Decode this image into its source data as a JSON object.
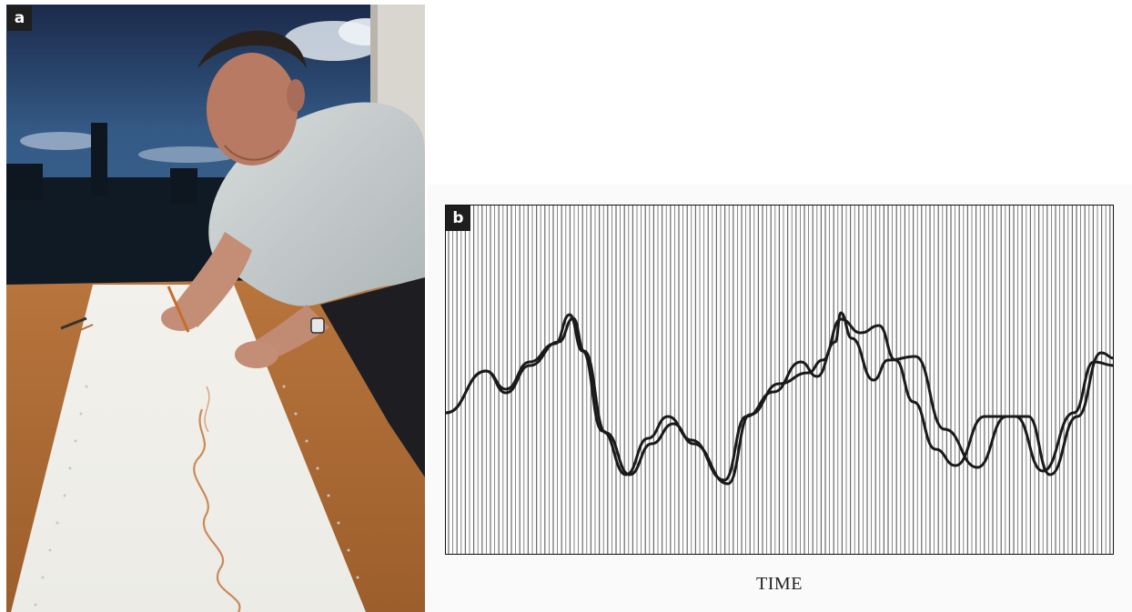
{
  "panel_a": {
    "label": "a"
  },
  "panel_b": {
    "label": "b",
    "xlabel": "TIME"
  }
}
